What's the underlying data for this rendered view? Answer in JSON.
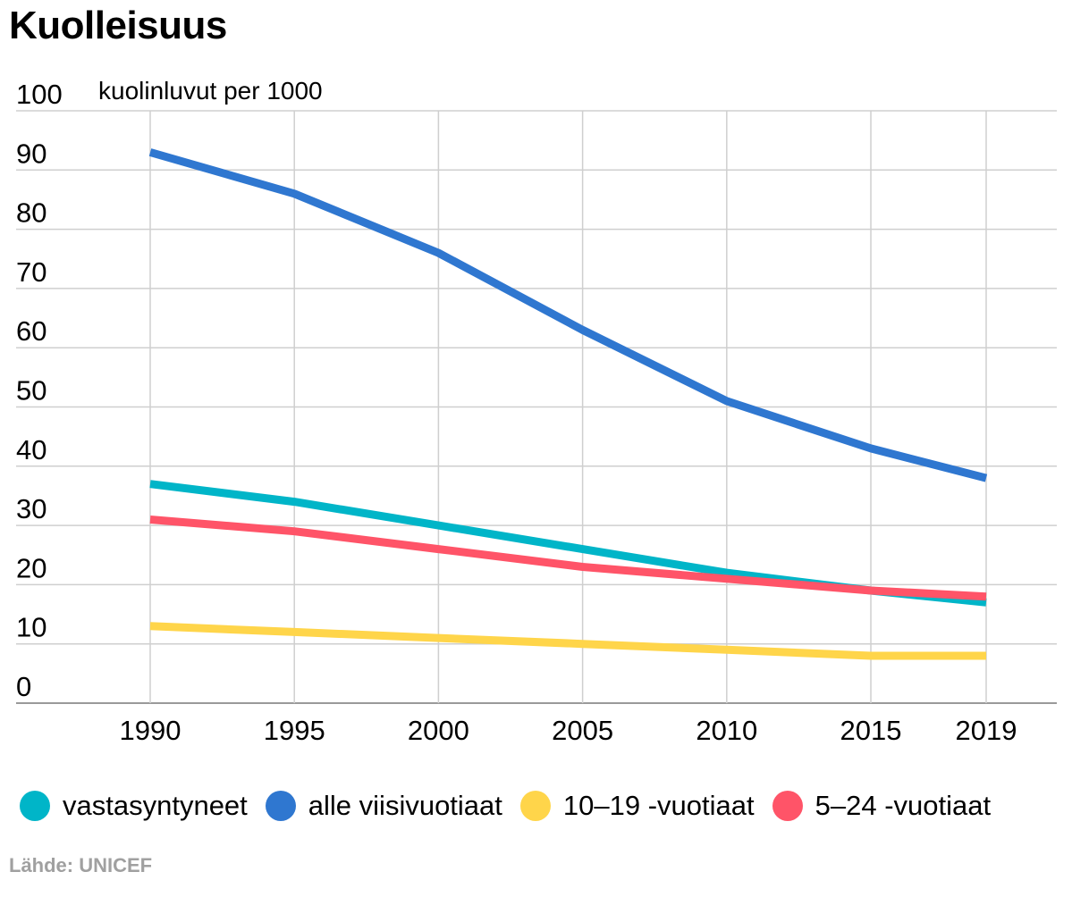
{
  "title": "Kuolleisuus",
  "source": "Lähde: UNICEF",
  "chart_data": {
    "type": "line",
    "title": "Kuolleisuus",
    "ylabel": "kuolinluvut per 1000",
    "xlabel": "",
    "x": [
      1990,
      1995,
      2000,
      2005,
      2010,
      2015,
      2019
    ],
    "x_tick_labels": [
      "1990",
      "1995",
      "2000",
      "2005",
      "2010",
      "2015",
      "2019"
    ],
    "y_ticks": [
      0,
      10,
      20,
      30,
      40,
      50,
      60,
      70,
      80,
      90,
      100
    ],
    "ylim": [
      0,
      100
    ],
    "grid": true,
    "legend_position": "bottom",
    "series": [
      {
        "name": "vastasyntyneet",
        "color": "#00b5c8",
        "values": [
          37,
          34,
          30,
          26,
          22,
          19,
          17
        ]
      },
      {
        "name": "alle viisivuotiaat",
        "color": "#2f77d0",
        "values": [
          93,
          86,
          76,
          63,
          51,
          43,
          38
        ]
      },
      {
        "name": "10–19 -vuotiaat",
        "color": "#ffd54a",
        "values": [
          13,
          12,
          11,
          10,
          9,
          8,
          8
        ]
      },
      {
        "name": "5–24 -vuotiaat",
        "color": "#ff5468",
        "values": [
          31,
          29,
          26,
          23,
          21,
          19,
          18
        ]
      }
    ]
  }
}
